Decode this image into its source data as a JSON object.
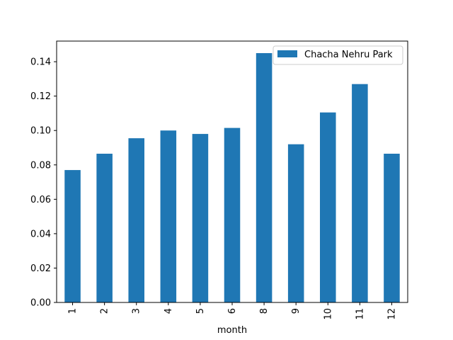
{
  "chart_data": {
    "type": "bar",
    "categories": [
      "1",
      "2",
      "3",
      "4",
      "5",
      "6",
      "8",
      "9",
      "10",
      "11",
      "12"
    ],
    "series": [
      {
        "name": "Chacha Nehru Park",
        "color": "#1f77b4",
        "values": [
          0.077,
          0.0865,
          0.0955,
          0.1,
          0.098,
          0.1015,
          0.145,
          0.092,
          0.1105,
          0.127,
          0.0865
        ]
      }
    ],
    "xlabel": "month",
    "ylabel": "",
    "ylim": [
      0,
      0.152
    ],
    "yticks": [
      "0.00",
      "0.02",
      "0.04",
      "0.06",
      "0.08",
      "0.10",
      "0.12",
      "0.14"
    ],
    "ytick_values": [
      0,
      0.02,
      0.04,
      0.06,
      0.08,
      0.1,
      0.12,
      0.14
    ],
    "legend_placement": "top-right",
    "grid": false
  }
}
